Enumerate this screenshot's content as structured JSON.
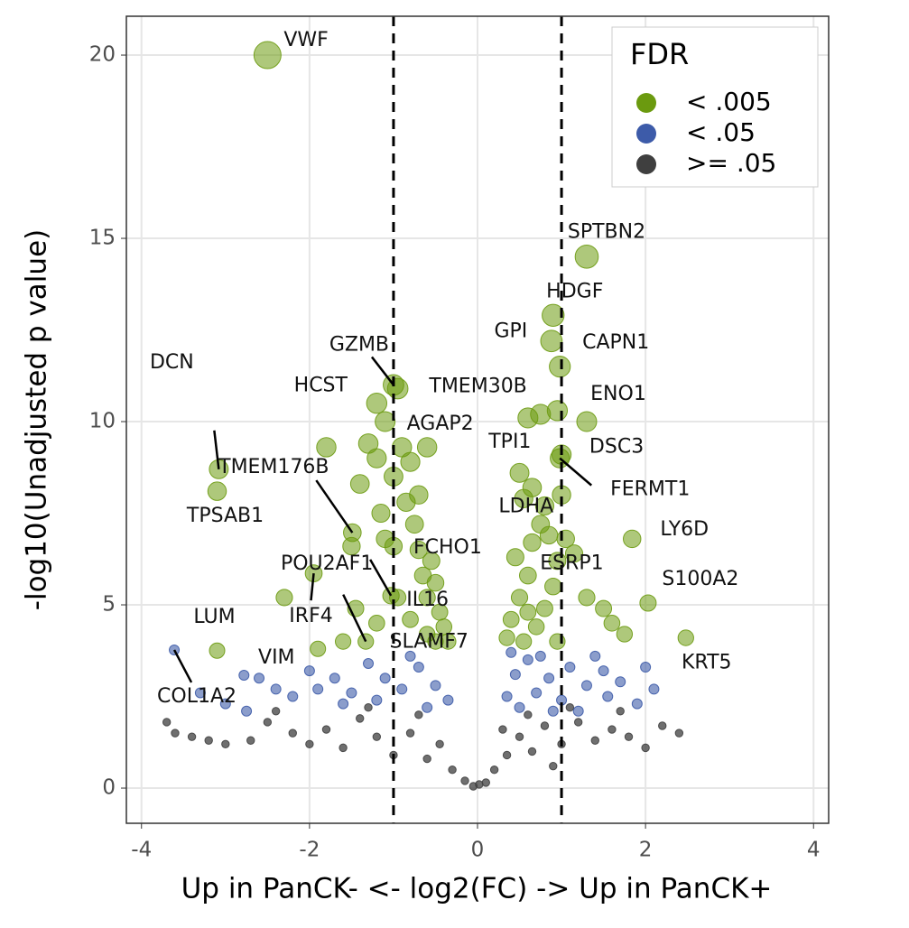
{
  "chart_data": {
    "type": "scatter",
    "xlabel": "Up in PanCK- <- log2(FC) -> Up in PanCK+",
    "ylabel": "-log10(Unadjusted p value)",
    "xlim": [
      -4.18,
      4.18
    ],
    "ylim": [
      -0.96,
      21.06
    ],
    "xticks": [
      -4,
      -2,
      0,
      2,
      4
    ],
    "yticks": [
      0,
      5,
      10,
      15,
      20
    ],
    "grid": true,
    "vlines": [
      -1,
      1
    ],
    "legend_title": "FDR",
    "legend_position": "top-right",
    "series": [
      {
        "name": "< .005",
        "color": "#6b9a0f",
        "x": [
          -2.5,
          1.3,
          0.9,
          0.88,
          0.98,
          -1.0,
          -0.95,
          -1.2,
          1.3,
          -1.1,
          0.6,
          1.0,
          0.98,
          -3.08,
          -1.49,
          -3.1,
          0.75,
          1.84,
          -1.0,
          -1.03,
          0.95,
          2.03,
          -0.95,
          -1.95,
          -3.1,
          -1.33,
          2.48,
          -2.3,
          -1.8,
          -1.5,
          -1.4,
          -1.3,
          -1.2,
          -1.15,
          -1.1,
          -1.0,
          -0.9,
          -0.8,
          -0.6,
          -0.75,
          -0.7,
          -0.65,
          -0.6,
          -0.55,
          -0.5,
          -0.45,
          -0.4,
          -0.6,
          -0.8,
          -1.2,
          -1.45,
          -1.6,
          -1.9,
          -0.85,
          -0.7,
          -0.5,
          -0.35,
          0.35,
          0.4,
          0.5,
          0.55,
          0.6,
          0.7,
          0.8,
          0.9,
          0.95,
          0.45,
          0.55,
          0.65,
          0.8,
          1.0,
          1.05,
          0.5,
          0.75,
          0.95,
          1.15,
          1.3,
          1.5,
          1.6,
          1.75,
          0.85,
          0.65,
          0.6
        ],
        "y": [
          20,
          14.5,
          12.9,
          12.2,
          11.5,
          11.0,
          10.9,
          10.5,
          10.0,
          10.0,
          10.1,
          9.1,
          9.0,
          8.7,
          6.97,
          8.1,
          7.2,
          6.8,
          6.6,
          5.25,
          6.2,
          5.05,
          5.2,
          5.86,
          3.75,
          4.0,
          4.1,
          5.2,
          9.3,
          6.6,
          8.3,
          9.4,
          9.0,
          7.5,
          6.8,
          8.5,
          9.3,
          8.9,
          9.3,
          7.2,
          6.5,
          5.8,
          5.2,
          6.2,
          5.6,
          4.8,
          4.4,
          4.2,
          4.6,
          4.5,
          4.9,
          4.0,
          3.8,
          7.8,
          8.0,
          4.0,
          4.0,
          4.1,
          4.6,
          5.2,
          4.0,
          5.8,
          4.4,
          4.9,
          5.5,
          4.0,
          6.3,
          7.9,
          8.2,
          7.7,
          8.0,
          6.8,
          8.6,
          10.2,
          10.3,
          6.4,
          5.2,
          4.9,
          4.5,
          4.2,
          6.9,
          6.7,
          4.8
        ]
      },
      {
        "name": "< .05",
        "color": "#3d5ba9",
        "x": [
          -3.61,
          -2.78,
          -3.3,
          -3.0,
          -2.6,
          -2.4,
          -2.2,
          -2.0,
          -1.9,
          -1.7,
          -1.5,
          -1.3,
          -1.1,
          -0.9,
          -0.7,
          -0.5,
          -0.35,
          -1.6,
          -1.2,
          -0.8,
          -0.6,
          -2.75,
          0.35,
          0.45,
          0.6,
          0.7,
          0.85,
          1.0,
          1.1,
          1.3,
          1.4,
          1.55,
          1.7,
          1.9,
          2.0,
          2.1,
          0.5,
          0.9,
          1.2,
          1.5,
          0.4,
          0.75
        ],
        "y": [
          3.77,
          3.08,
          2.6,
          2.3,
          3.0,
          2.7,
          2.5,
          3.2,
          2.7,
          3.0,
          2.6,
          3.4,
          3.0,
          2.7,
          3.3,
          2.8,
          2.4,
          2.3,
          2.4,
          3.6,
          2.2,
          2.1,
          2.5,
          3.1,
          3.5,
          2.6,
          3.0,
          2.4,
          3.3,
          2.8,
          3.6,
          2.5,
          2.9,
          2.3,
          3.3,
          2.7,
          2.2,
          2.1,
          2.1,
          3.2,
          3.7,
          3.6
        ]
      },
      {
        "name": ">= .05",
        "color": "#3f3f3f",
        "x": [
          -3.7,
          -3.6,
          -3.4,
          -3.2,
          -3.0,
          -2.7,
          -2.5,
          -2.2,
          -2.0,
          -1.8,
          -1.6,
          -1.4,
          -1.2,
          -1.0,
          -0.8,
          -0.6,
          -0.45,
          -0.3,
          -0.15,
          -1.3,
          -0.7,
          -2.4,
          0.1,
          0.2,
          0.35,
          0.5,
          0.65,
          0.8,
          1.0,
          1.2,
          1.4,
          1.6,
          1.8,
          2.0,
          2.2,
          2.4,
          0.6,
          1.1,
          1.7,
          0.3,
          0.9,
          -0.05,
          0.02
        ],
        "y": [
          1.8,
          1.5,
          1.4,
          1.3,
          1.2,
          1.3,
          1.8,
          1.5,
          1.2,
          1.6,
          1.1,
          1.9,
          1.4,
          0.9,
          1.5,
          0.8,
          1.2,
          0.5,
          0.2,
          2.2,
          2.0,
          2.1,
          0.15,
          0.5,
          0.9,
          1.4,
          1.0,
          1.7,
          1.2,
          1.8,
          1.3,
          1.6,
          1.4,
          1.1,
          1.7,
          1.5,
          2.0,
          2.2,
          2.1,
          1.6,
          0.6,
          0.05,
          0.1
        ]
      }
    ],
    "annotations": [
      {
        "text": "VWF",
        "x": -2.5,
        "y": 20
      },
      {
        "text": "SPTBN2",
        "x": 1.3,
        "y": 14.5
      },
      {
        "text": "HDGF",
        "x": 0.9,
        "y": 12.9
      },
      {
        "text": "GPI",
        "x": 0.88,
        "y": 12.2
      },
      {
        "text": "CAPN1",
        "x": 0.98,
        "y": 11.5
      },
      {
        "text": "GZMB",
        "x": -1.0,
        "y": 11.0
      },
      {
        "text": "TMEM30B",
        "x": -0.95,
        "y": 10.9
      },
      {
        "text": "HCST",
        "x": -1.2,
        "y": 10.5
      },
      {
        "text": "ENO1",
        "x": 1.3,
        "y": 10.0
      },
      {
        "text": "AGAP2",
        "x": -1.1,
        "y": 10.0
      },
      {
        "text": "TPI1",
        "x": 0.6,
        "y": 10.1
      },
      {
        "text": "DSC3",
        "x": 1.0,
        "y": 9.1
      },
      {
        "text": "FERMT1",
        "x": 0.98,
        "y": 9.0
      },
      {
        "text": "DCN",
        "x": -3.08,
        "y": 8.7
      },
      {
        "text": "TMEM176B",
        "x": -1.49,
        "y": 6.97
      },
      {
        "text": "TPSAB1",
        "x": -3.1,
        "y": 8.1
      },
      {
        "text": "LDHA",
        "x": 0.75,
        "y": 7.2
      },
      {
        "text": "LY6D",
        "x": 1.84,
        "y": 6.8
      },
      {
        "text": "FCHO1",
        "x": -1.0,
        "y": 6.6
      },
      {
        "text": "POU2AF1",
        "x": -1.03,
        "y": 5.25
      },
      {
        "text": "ESRP1",
        "x": 0.95,
        "y": 6.2
      },
      {
        "text": "S100A2",
        "x": 2.03,
        "y": 5.05
      },
      {
        "text": "IL16",
        "x": -0.95,
        "y": 5.2
      },
      {
        "text": "IRF4",
        "x": -1.95,
        "y": 5.86
      },
      {
        "text": "LUM",
        "x": -3.1,
        "y": 3.75
      },
      {
        "text": "SLAMF7",
        "x": -1.33,
        "y": 4.0
      },
      {
        "text": "KRT5",
        "x": 2.48,
        "y": 4.1
      },
      {
        "text": "VIM",
        "x": -2.78,
        "y": 3.08
      },
      {
        "text": "COL1A2",
        "x": -3.61,
        "y": 3.77
      }
    ]
  }
}
